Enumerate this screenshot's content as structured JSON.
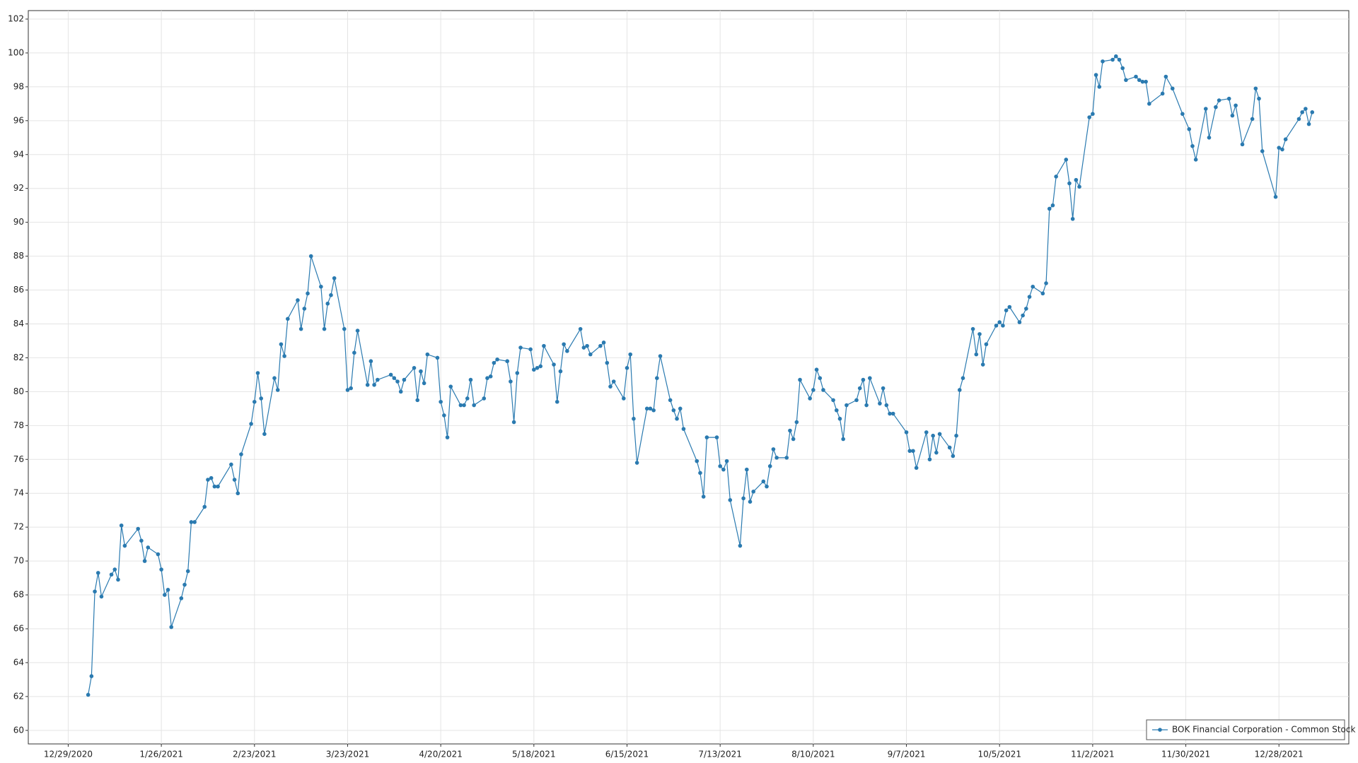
{
  "chart_data": {
    "type": "line",
    "x": [
      "2021-01-04",
      "2021-01-05",
      "2021-01-06",
      "2021-01-07",
      "2021-01-08",
      "2021-01-11",
      "2021-01-12",
      "2021-01-13",
      "2021-01-14",
      "2021-01-15",
      "2021-01-19",
      "2021-01-20",
      "2021-01-21",
      "2021-01-22",
      "2021-01-25",
      "2021-01-26",
      "2021-01-27",
      "2021-01-28",
      "2021-01-29",
      "2021-02-01",
      "2021-02-02",
      "2021-02-03",
      "2021-02-04",
      "2021-02-05",
      "2021-02-08",
      "2021-02-09",
      "2021-02-10",
      "2021-02-11",
      "2021-02-12",
      "2021-02-16",
      "2021-02-17",
      "2021-02-18",
      "2021-02-19",
      "2021-02-22",
      "2021-02-23",
      "2021-02-24",
      "2021-02-25",
      "2021-02-26",
      "2021-03-01",
      "2021-03-02",
      "2021-03-03",
      "2021-03-04",
      "2021-03-05",
      "2021-03-08",
      "2021-03-09",
      "2021-03-10",
      "2021-03-11",
      "2021-03-12",
      "2021-03-15",
      "2021-03-16",
      "2021-03-17",
      "2021-03-18",
      "2021-03-19",
      "2021-03-22",
      "2021-03-23",
      "2021-03-24",
      "2021-03-25",
      "2021-03-26",
      "2021-03-29",
      "2021-03-30",
      "2021-03-31",
      "2021-04-01",
      "2021-04-05",
      "2021-04-06",
      "2021-04-07",
      "2021-04-08",
      "2021-04-09",
      "2021-04-12",
      "2021-04-13",
      "2021-04-14",
      "2021-04-15",
      "2021-04-16",
      "2021-04-19",
      "2021-04-20",
      "2021-04-21",
      "2021-04-22",
      "2021-04-23",
      "2021-04-26",
      "2021-04-27",
      "2021-04-28",
      "2021-04-29",
      "2021-04-30",
      "2021-05-03",
      "2021-05-04",
      "2021-05-05",
      "2021-05-06",
      "2021-05-07",
      "2021-05-10",
      "2021-05-11",
      "2021-05-12",
      "2021-05-13",
      "2021-05-14",
      "2021-05-17",
      "2021-05-18",
      "2021-05-19",
      "2021-05-20",
      "2021-05-21",
      "2021-05-24",
      "2021-05-25",
      "2021-05-26",
      "2021-05-27",
      "2021-05-28",
      "2021-06-01",
      "2021-06-02",
      "2021-06-03",
      "2021-06-04",
      "2021-06-07",
      "2021-06-08",
      "2021-06-09",
      "2021-06-10",
      "2021-06-11",
      "2021-06-14",
      "2021-06-15",
      "2021-06-16",
      "2021-06-17",
      "2021-06-18",
      "2021-06-21",
      "2021-06-22",
      "2021-06-23",
      "2021-06-24",
      "2021-06-25",
      "2021-06-28",
      "2021-06-29",
      "2021-06-30",
      "2021-07-01",
      "2021-07-02",
      "2021-07-06",
      "2021-07-07",
      "2021-07-08",
      "2021-07-09",
      "2021-07-12",
      "2021-07-13",
      "2021-07-14",
      "2021-07-15",
      "2021-07-16",
      "2021-07-19",
      "2021-07-20",
      "2021-07-21",
      "2021-07-22",
      "2021-07-23",
      "2021-07-26",
      "2021-07-27",
      "2021-07-28",
      "2021-07-29",
      "2021-07-30",
      "2021-08-02",
      "2021-08-03",
      "2021-08-04",
      "2021-08-05",
      "2021-08-06",
      "2021-08-09",
      "2021-08-10",
      "2021-08-11",
      "2021-08-12",
      "2021-08-13",
      "2021-08-16",
      "2021-08-17",
      "2021-08-18",
      "2021-08-19",
      "2021-08-20",
      "2021-08-23",
      "2021-08-24",
      "2021-08-25",
      "2021-08-26",
      "2021-08-27",
      "2021-08-30",
      "2021-08-31",
      "2021-09-01",
      "2021-09-02",
      "2021-09-03",
      "2021-09-07",
      "2021-09-08",
      "2021-09-09",
      "2021-09-10",
      "2021-09-13",
      "2021-09-14",
      "2021-09-15",
      "2021-09-16",
      "2021-09-17",
      "2021-09-20",
      "2021-09-21",
      "2021-09-22",
      "2021-09-23",
      "2021-09-24",
      "2021-09-27",
      "2021-09-28",
      "2021-09-29",
      "2021-09-30",
      "2021-10-01",
      "2021-10-04",
      "2021-10-05",
      "2021-10-06",
      "2021-10-07",
      "2021-10-08",
      "2021-10-11",
      "2021-10-12",
      "2021-10-13",
      "2021-10-14",
      "2021-10-15",
      "2021-10-18",
      "2021-10-19",
      "2021-10-20",
      "2021-10-21",
      "2021-10-22",
      "2021-10-25",
      "2021-10-26",
      "2021-10-27",
      "2021-10-28",
      "2021-10-29",
      "2021-11-01",
      "2021-11-02",
      "2021-11-03",
      "2021-11-04",
      "2021-11-05",
      "2021-11-08",
      "2021-11-09",
      "2021-11-10",
      "2021-11-11",
      "2021-11-12",
      "2021-11-15",
      "2021-11-16",
      "2021-11-17",
      "2021-11-18",
      "2021-11-19",
      "2021-11-23",
      "2021-11-24",
      "2021-11-26",
      "2021-11-29",
      "2021-12-01",
      "2021-12-02",
      "2021-12-03",
      "2021-12-06",
      "2021-12-07",
      "2021-12-09",
      "2021-12-10",
      "2021-12-13",
      "2021-12-14",
      "2021-12-15",
      "2021-12-17",
      "2021-12-20",
      "2021-12-21",
      "2021-12-22",
      "2021-12-23",
      "2021-12-27",
      "2021-12-28",
      "2021-12-29",
      "2021-12-30",
      "2022-01-03",
      "2022-01-04",
      "2022-01-05",
      "2022-01-06",
      "2022-01-07"
    ],
    "series": [
      {
        "name": "BOK Financial Corporation - Common Stock",
        "color": "#2a7ab0",
        "values": [
          62.1,
          63.2,
          68.2,
          69.3,
          67.9,
          69.2,
          69.5,
          68.9,
          72.1,
          70.9,
          71.9,
          71.2,
          70.0,
          70.8,
          70.4,
          69.5,
          68.0,
          68.3,
          66.1,
          67.8,
          68.6,
          69.4,
          72.3,
          72.3,
          73.2,
          74.8,
          74.9,
          74.4,
          74.4,
          75.7,
          74.8,
          74.0,
          76.3,
          78.1,
          79.4,
          81.1,
          79.6,
          77.5,
          80.8,
          80.1,
          82.8,
          82.1,
          84.3,
          85.4,
          83.7,
          84.9,
          85.8,
          88.0,
          86.2,
          83.7,
          85.2,
          85.7,
          86.7,
          83.7,
          80.1,
          80.2,
          82.3,
          83.6,
          80.4,
          81.8,
          80.4,
          80.7,
          81.0,
          80.8,
          80.6,
          80.0,
          80.7,
          81.4,
          79.5,
          81.2,
          80.5,
          82.2,
          82.0,
          79.4,
          78.6,
          77.3,
          80.3,
          79.2,
          79.2,
          79.6,
          80.7,
          79.2,
          79.6,
          80.8,
          80.9,
          81.7,
          81.9,
          81.8,
          80.6,
          78.2,
          81.1,
          82.6,
          82.5,
          81.3,
          81.4,
          81.5,
          82.7,
          81.6,
          79.4,
          81.2,
          82.8,
          82.4,
          83.7,
          82.6,
          82.7,
          82.2,
          82.7,
          82.9,
          81.7,
          80.3,
          80.6,
          79.6,
          81.4,
          82.2,
          78.4,
          75.8,
          79.0,
          79.0,
          78.9,
          80.8,
          82.1,
          79.5,
          78.9,
          78.4,
          79.0,
          77.8,
          75.9,
          75.2,
          73.8,
          77.3,
          77.3,
          75.6,
          75.4,
          75.9,
          73.6,
          70.9,
          73.7,
          75.4,
          73.5,
          74.1,
          74.7,
          74.4,
          75.6,
          76.6,
          76.1,
          76.1,
          77.7,
          77.2,
          78.2,
          80.7,
          79.6,
          80.1,
          81.3,
          80.8,
          80.1,
          79.5,
          78.9,
          78.4,
          77.2,
          79.2,
          79.5,
          80.2,
          80.7,
          79.2,
          80.8,
          79.3,
          80.2,
          79.2,
          78.7,
          78.7,
          77.6,
          76.5,
          76.5,
          75.5,
          77.6,
          76.0,
          77.4,
          76.4,
          77.5,
          76.7,
          76.2,
          77.4,
          80.1,
          80.8,
          83.7,
          82.2,
          83.4,
          81.6,
          82.8,
          83.9,
          84.1,
          83.9,
          84.8,
          85.0,
          84.1,
          84.5,
          84.9,
          85.6,
          86.2,
          85.8,
          86.4,
          90.8,
          91.0,
          92.7,
          93.7,
          92.3,
          90.2,
          92.5,
          92.1,
          96.2,
          96.4,
          98.7,
          98.0,
          99.5,
          99.6,
          99.8,
          99.6,
          99.1,
          98.4,
          98.6,
          98.4,
          98.3,
          98.3,
          97.0,
          97.6,
          98.6,
          97.9,
          96.4,
          95.5,
          94.5,
          93.7,
          96.7,
          95.0,
          96.8,
          97.2,
          97.3,
          96.3,
          96.9,
          94.6,
          96.1,
          97.9,
          97.3,
          94.2,
          91.5,
          94.4,
          94.3,
          94.9,
          96.1,
          96.5,
          96.7,
          95.8,
          96.5
        ]
      }
    ],
    "xlim": [
      "2020-12-17",
      "2022-01-18"
    ],
    "xticks": [
      {
        "value": "2020-12-29",
        "label": "12/29/2020"
      },
      {
        "value": "2021-01-26",
        "label": "1/26/2021"
      },
      {
        "value": "2021-02-23",
        "label": "2/23/2021"
      },
      {
        "value": "2021-03-23",
        "label": "3/23/2021"
      },
      {
        "value": "2021-04-20",
        "label": "4/20/2021"
      },
      {
        "value": "2021-05-18",
        "label": "5/18/2021"
      },
      {
        "value": "2021-06-15",
        "label": "6/15/2021"
      },
      {
        "value": "2021-07-13",
        "label": "7/13/2021"
      },
      {
        "value": "2021-08-10",
        "label": "8/10/2021"
      },
      {
        "value": "2021-09-07",
        "label": "9/7/2021"
      },
      {
        "value": "2021-10-05",
        "label": "10/5/2021"
      },
      {
        "value": "2021-11-02",
        "label": "11/2/2021"
      },
      {
        "value": "2021-11-30",
        "label": "11/30/2021"
      },
      {
        "value": "2021-12-28",
        "label": "12/28/2021"
      }
    ],
    "ylim": [
      59.2,
      102.5
    ],
    "yticks": [
      60,
      62,
      64,
      66,
      68,
      70,
      72,
      74,
      76,
      78,
      80,
      82,
      84,
      86,
      88,
      90,
      92,
      94,
      96,
      98,
      100,
      102
    ],
    "grid": true,
    "legend": "lower right"
  }
}
